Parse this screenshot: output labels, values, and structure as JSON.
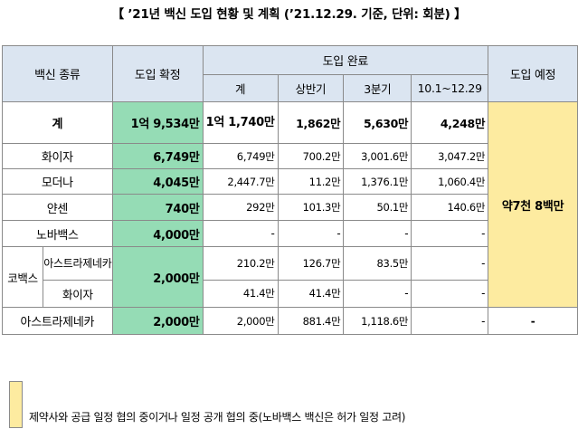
{
  "title": "【 ’21년 백신 도입 현황 및 계획 (’21.12.29. 기준, 단위: 회분) 】",
  "header": {
    "type": "백신 종류",
    "confirmed": "도입 확정",
    "completed": "도입 완료",
    "planned": "도입 예정",
    "sub": [
      "계",
      "상반기",
      "3분기",
      "10.1~12.29"
    ]
  },
  "rows": {
    "total": {
      "name": "계",
      "confirmed": "1억 9,534만",
      "total": "1억 1,740만",
      "h1": "1,862만",
      "q3": "5,630만",
      "q4": "4,248만"
    },
    "pfizer": {
      "name": "화이자",
      "confirmed": "6,749만",
      "total": "6,749만",
      "h1": "700.2만",
      "q3": "3,001.6만",
      "q4": "3,047.2만"
    },
    "moderna": {
      "name": "모더나",
      "confirmed": "4,045만",
      "total": "2,447.7만",
      "h1": "11.2만",
      "q3": "1,376.1만",
      "q4": "1,060.4만"
    },
    "janssen": {
      "name": "얀센",
      "confirmed": "740만",
      "total": "292만",
      "h1": "101.3만",
      "q3": "50.1만",
      "q4": "140.6만"
    },
    "novavax": {
      "name": "노바백스",
      "confirmed": "4,000만",
      "total": "-",
      "h1": "-",
      "q3": "-",
      "q4": "-"
    },
    "covax": {
      "name": "코백스",
      "confirmed": "2,000만",
      "az": {
        "name": "아스트라제네카",
        "total": "210.2만",
        "h1": "126.7만",
        "q3": "83.5만",
        "q4": "-"
      },
      "pfizer": {
        "name": "화이자",
        "total": "41.4만",
        "h1": "41.4만",
        "q3": "-",
        "q4": "-"
      }
    },
    "az": {
      "name": "아스트라제네카",
      "confirmed": "2,000만",
      "total": "2,000만",
      "h1": "881.4만",
      "q3": "1,118.6만",
      "q4": "-"
    }
  },
  "planned_value": "약7천 8백만",
  "az_planned": "-",
  "legend": "제약사와 공급 일정 협의 중이거나 일정 공개 협의 중(노바백스 백신은 허가 일정 고려)",
  "colors": {
    "header_bg": "#dbe5f1",
    "confirmed_bg": "#95dcb5",
    "planned_bg": "#fdeba0"
  }
}
